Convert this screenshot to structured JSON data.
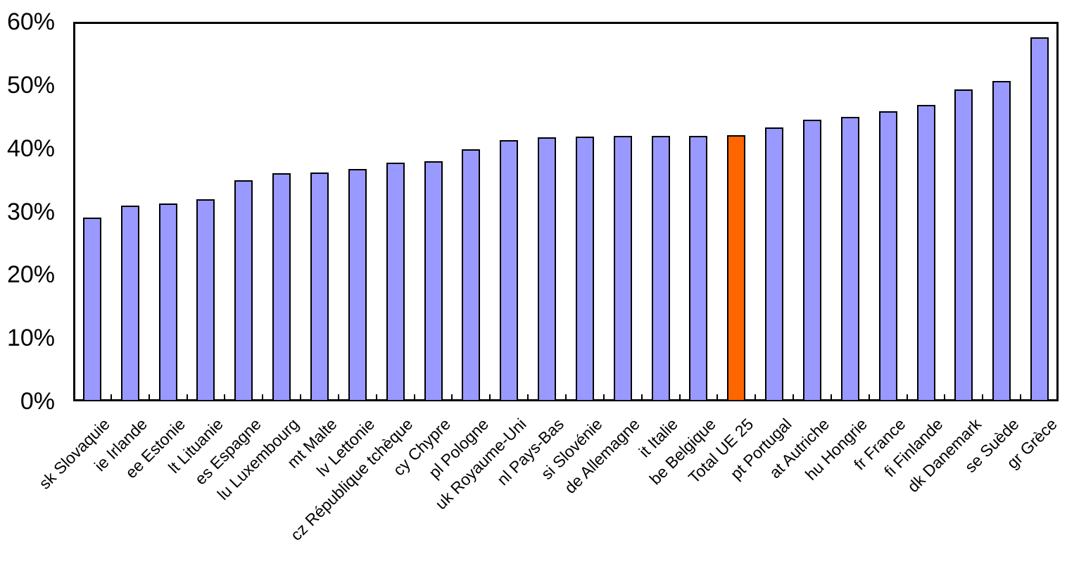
{
  "colors": {
    "bar_fill": "#9999FF",
    "bar_highlight_fill": "#FF6600",
    "bar_border": "#000000",
    "gridline": "#000000",
    "axis": "#000000",
    "background": "#FFFFFF"
  },
  "chart_data": {
    "type": "bar",
    "title": "",
    "xlabel": "",
    "ylabel": "",
    "categories": [
      "sk Slovaquie",
      "ie Irlande",
      "ee Estonie",
      "lt Lituanie",
      "es Espagne",
      "lu Luxembourg",
      "mt Malte",
      "lv Lettonie",
      "cz République tchèque",
      "cy Chypre",
      "pl Pologne",
      "uk Royaume-Uni",
      "nl Pays-Bas",
      "si Slovénie",
      "de Allemagne",
      "it Italie",
      "be Belgique",
      "Total UE 25",
      "pt Portugal",
      "at Autriche",
      "hu Hongrie",
      "fr France",
      "fi Finlande",
      "dk Danemark",
      "se Suède",
      "gr Grèce"
    ],
    "values": [
      29.0,
      31.0,
      31.3,
      32.0,
      35.0,
      36.1,
      36.2,
      36.7,
      37.7,
      38.0,
      39.9,
      41.3,
      41.7,
      41.9,
      42.0,
      42.0,
      42.0,
      42.1,
      43.3,
      44.5,
      45.0,
      45.9,
      46.9,
      49.3,
      50.7,
      57.6
    ],
    "highlight_index": 17,
    "highlight_category": "Total UE 25",
    "ylim": [
      0,
      60
    ],
    "ytick_step": 10,
    "ytick_labels": [
      "0%",
      "10%",
      "20%",
      "30%",
      "40%",
      "50%",
      "60%"
    ],
    "grid": "horizontal",
    "legend": "none",
    "label_rotation_deg": -45
  }
}
